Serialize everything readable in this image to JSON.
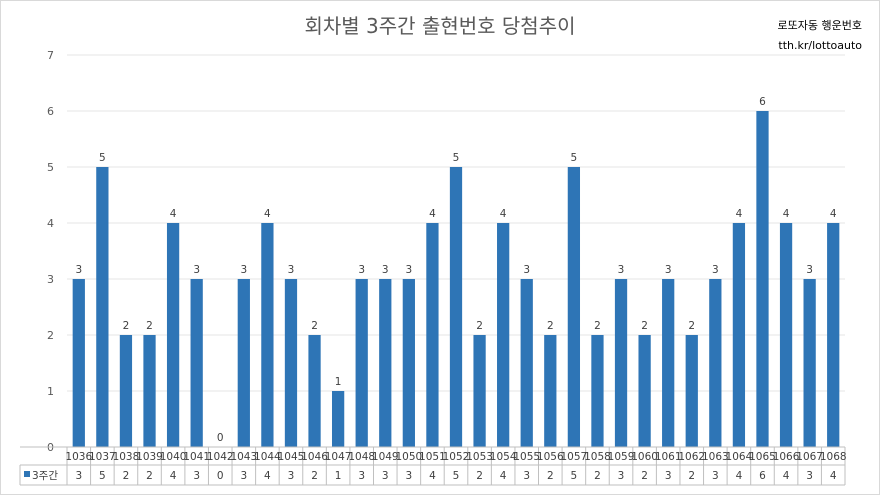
{
  "header": {
    "title": "회차별 3주간 출현번호 당첨추이",
    "brand_line1": "로또자동 행운번호",
    "brand_line2": "tth.kr/lottoauto"
  },
  "colors": {
    "bar": "#2E75B6",
    "grid": "#e6e6e6",
    "axis": "#bfbfbf"
  },
  "chart_data": {
    "type": "bar",
    "title": "회차별 3주간 출현번호 당첨추이",
    "categories": [
      "1036",
      "1037",
      "1038",
      "1039",
      "1040",
      "1041",
      "1042",
      "1043",
      "1044",
      "1045",
      "1046",
      "1047",
      "1048",
      "1049",
      "1050",
      "1051",
      "1052",
      "1053",
      "1054",
      "1055",
      "1056",
      "1057",
      "1058",
      "1059",
      "1060",
      "1061",
      "1062",
      "1063",
      "1064",
      "1065",
      "1066",
      "1067",
      "1068"
    ],
    "series": [
      {
        "name": "3주간",
        "values": [
          3,
          5,
          2,
          2,
          4,
          3,
          0,
          3,
          4,
          3,
          2,
          1,
          3,
          3,
          3,
          4,
          5,
          2,
          4,
          3,
          2,
          5,
          2,
          3,
          2,
          3,
          2,
          3,
          4,
          6,
          4,
          3,
          4
        ]
      }
    ],
    "ylim": [
      0,
      7
    ],
    "yticks": [
      0,
      1,
      2,
      3,
      4,
      5,
      6,
      7
    ],
    "grid": true,
    "data_labels": true,
    "data_table": true,
    "xlabel": "",
    "ylabel": ""
  }
}
